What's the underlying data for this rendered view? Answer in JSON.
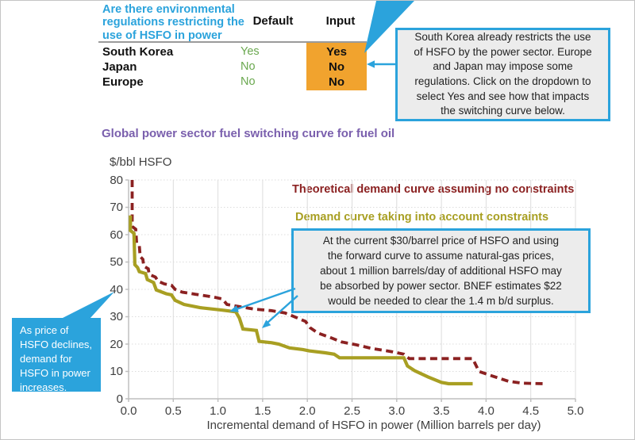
{
  "table": {
    "question": "Are there environmental\nregulations restricting the\nuse of HSFO in power",
    "columns": [
      "Default",
      "Input"
    ],
    "rows": [
      {
        "name": "South Korea",
        "default": "Yes",
        "input": "Yes"
      },
      {
        "name": "Japan",
        "default": "No",
        "input": "No"
      },
      {
        "name": "Europe",
        "default": "No",
        "input": "No"
      }
    ]
  },
  "callouts": {
    "right": "South Korea already restricts the use\nof HSFO by the power sector. Europe\nand Japan may impose some\nregulations. Click on the dropdown to\nselect Yes and see how that impacts\nthe switching curve below.",
    "chart": "At the current $30/barrel price of HSFO and using\nthe forward curve to assume natural-gas prices,\nabout 1 million barrels/day of additional HSFO may\nbe absorbed by power sector. BNEF estimates $22\nwould be needed to clear the 1.4 m b/d surplus.",
    "left": "As price of\nHSFO declines,\ndemand for\nHSFO in power\nincreases."
  },
  "chart_data": {
    "type": "line",
    "title": "Global power sector fuel switching curve for fuel oil",
    "ylabel": "$/bbl HSFO",
    "xlabel": "Incremental demand of HSFO in power (Million barrels per day)",
    "xlim": [
      0,
      5
    ],
    "ylim": [
      0,
      80
    ],
    "x_ticks": [
      "0.0",
      "0.5",
      "1.0",
      "1.5",
      "2.0",
      "2.5",
      "3.0",
      "3.5",
      "4.0",
      "4.5",
      "5.0"
    ],
    "y_ticks": [
      "0",
      "10",
      "20",
      "30",
      "40",
      "50",
      "60",
      "70",
      "80"
    ],
    "grid": true,
    "legend_position": "top-right-inside",
    "series": [
      {
        "name": "Theoretical demand curve assuming no constraints",
        "color": "#8b2121",
        "style": "dashed",
        "points": [
          [
            0.04,
            80
          ],
          [
            0.04,
            63
          ],
          [
            0.08,
            62
          ],
          [
            0.09,
            57
          ],
          [
            0.12,
            56
          ],
          [
            0.13,
            52
          ],
          [
            0.16,
            51
          ],
          [
            0.17,
            48.5
          ],
          [
            0.22,
            47.5
          ],
          [
            0.23,
            45.5
          ],
          [
            0.3,
            44.5
          ],
          [
            0.33,
            43
          ],
          [
            0.4,
            42
          ],
          [
            0.48,
            41.5
          ],
          [
            0.52,
            40
          ],
          [
            0.6,
            39
          ],
          [
            0.75,
            38.2
          ],
          [
            0.95,
            37.2
          ],
          [
            1.05,
            36.5
          ],
          [
            1.1,
            34.5
          ],
          [
            1.22,
            33.8
          ],
          [
            1.4,
            32.8
          ],
          [
            1.6,
            32.2
          ],
          [
            1.75,
            31.4
          ],
          [
            1.87,
            29.8
          ],
          [
            1.98,
            28.3
          ],
          [
            2.03,
            26
          ],
          [
            2.12,
            24
          ],
          [
            2.25,
            22.5
          ],
          [
            2.38,
            20.8
          ],
          [
            2.55,
            19.7
          ],
          [
            2.72,
            18.4
          ],
          [
            2.95,
            17.2
          ],
          [
            3.08,
            16.3
          ],
          [
            3.14,
            14.7
          ],
          [
            3.85,
            14.7
          ],
          [
            3.92,
            10
          ],
          [
            4.08,
            8.2
          ],
          [
            4.25,
            6.4
          ],
          [
            4.4,
            5.7
          ],
          [
            4.65,
            5.5
          ]
        ]
      },
      {
        "name": "Demand curve taking into account constraints",
        "color": "#a89f22",
        "style": "solid",
        "points": [
          [
            0.02,
            67
          ],
          [
            0.02,
            61.5
          ],
          [
            0.06,
            60.5
          ],
          [
            0.07,
            49
          ],
          [
            0.1,
            48
          ],
          [
            0.12,
            46.5
          ],
          [
            0.19,
            45.8
          ],
          [
            0.21,
            43.6
          ],
          [
            0.28,
            42.5
          ],
          [
            0.31,
            39.8
          ],
          [
            0.42,
            38.4
          ],
          [
            0.48,
            38
          ],
          [
            0.52,
            36
          ],
          [
            0.62,
            34.5
          ],
          [
            0.8,
            33.3
          ],
          [
            1.05,
            32.4
          ],
          [
            1.2,
            31.8
          ],
          [
            1.24,
            29.5
          ],
          [
            1.28,
            25.5
          ],
          [
            1.43,
            25
          ],
          [
            1.46,
            21
          ],
          [
            1.6,
            20.5
          ],
          [
            1.68,
            20
          ],
          [
            1.8,
            18.6
          ],
          [
            1.95,
            18
          ],
          [
            2.02,
            17.5
          ],
          [
            2.2,
            16.8
          ],
          [
            2.3,
            16.3
          ],
          [
            2.36,
            15
          ],
          [
            3.08,
            15
          ],
          [
            3.12,
            12
          ],
          [
            3.2,
            10.3
          ],
          [
            3.35,
            8
          ],
          [
            3.5,
            6
          ],
          [
            3.58,
            5.5
          ],
          [
            3.85,
            5.5
          ]
        ]
      }
    ]
  },
  "colors": {
    "accent": "#2ba3dc",
    "orange": "#f1a32e",
    "green": "#6aa84f",
    "purple": "#7a5fad",
    "red": "#8b2121",
    "olive": "#a89f22",
    "grid": "#dcdcdc",
    "axis": "#bfbfbf",
    "text": "#3f3f3f",
    "callout-bg": "#ececec"
  }
}
